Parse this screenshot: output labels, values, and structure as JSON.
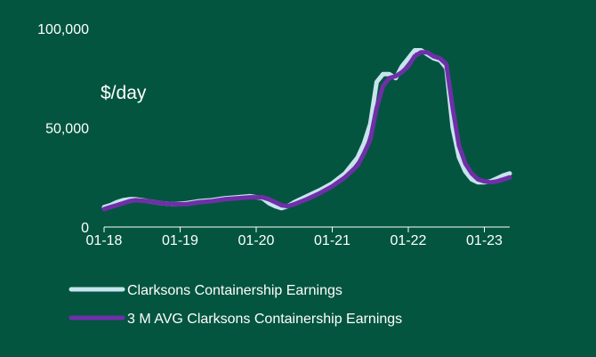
{
  "chart_data": {
    "type": "line",
    "title": "",
    "ylabel": "$/day",
    "xlabel": "",
    "ylim": [
      0,
      100000
    ],
    "y_ticks": [
      {
        "value": 0,
        "label": "0"
      },
      {
        "value": 50000,
        "label": "50,000"
      },
      {
        "value": 100000,
        "label": "100,000"
      }
    ],
    "x_ticks": [
      "01-18",
      "01-19",
      "01-20",
      "01-21",
      "01-22",
      "01-23"
    ],
    "x_start": "2018-01",
    "grid": false,
    "legend": "bottom-left",
    "series": [
      {
        "name": "Clarksons Containership Earnings",
        "color": "#c7e3ee",
        "x": [
          "2018-01",
          "2018-02",
          "2018-03",
          "2018-04",
          "2018-05",
          "2018-06",
          "2018-08",
          "2018-10",
          "2018-12",
          "2019-02",
          "2019-04",
          "2019-06",
          "2019-08",
          "2019-10",
          "2019-12",
          "2020-02",
          "2020-03",
          "2020-04",
          "2020-05",
          "2020-06",
          "2020-07",
          "2020-09",
          "2020-11",
          "2021-01",
          "2021-03",
          "2021-05",
          "2021-06",
          "2021-07",
          "2021-08",
          "2021-09",
          "2021-10",
          "2021-11",
          "2021-12",
          "2022-01",
          "2022-02",
          "2022-03",
          "2022-04",
          "2022-05",
          "2022-06",
          "2022-07",
          "2022-08",
          "2022-09",
          "2022-10",
          "2022-11",
          "2022-12",
          "2023-01",
          "2023-02",
          "2023-03",
          "2023-04",
          "2023-05"
        ],
        "values": [
          10000,
          11000,
          12500,
          13500,
          14000,
          14000,
          13000,
          12000,
          11500,
          12000,
          13000,
          13500,
          14500,
          15000,
          15500,
          14500,
          12000,
          10500,
          9500,
          10500,
          12500,
          15500,
          18500,
          22000,
          27000,
          35000,
          42000,
          52000,
          73000,
          77000,
          77000,
          75000,
          81000,
          85000,
          89000,
          89000,
          87000,
          85000,
          84000,
          80000,
          50000,
          35000,
          28000,
          24000,
          22500,
          22500,
          23000,
          24500,
          26000,
          27000
        ]
      },
      {
        "name": "3 M AVG Clarksons Containership Earnings",
        "color": "#6f2fa8",
        "x": [
          "2018-01",
          "2018-02",
          "2018-03",
          "2018-04",
          "2018-05",
          "2018-06",
          "2018-08",
          "2018-10",
          "2018-12",
          "2019-02",
          "2019-04",
          "2019-06",
          "2019-08",
          "2019-10",
          "2019-12",
          "2020-02",
          "2020-03",
          "2020-04",
          "2020-05",
          "2020-06",
          "2020-07",
          "2020-09",
          "2020-11",
          "2021-01",
          "2021-03",
          "2021-05",
          "2021-06",
          "2021-07",
          "2021-08",
          "2021-09",
          "2021-10",
          "2021-11",
          "2021-12",
          "2022-01",
          "2022-02",
          "2022-03",
          "2022-04",
          "2022-05",
          "2022-06",
          "2022-07",
          "2022-08",
          "2022-09",
          "2022-10",
          "2022-11",
          "2022-12",
          "2023-01",
          "2023-02",
          "2023-03",
          "2023-04",
          "2023-05"
        ],
        "values": [
          9000,
          10000,
          11000,
          12000,
          13000,
          13500,
          13000,
          12000,
          11500,
          11500,
          12500,
          13000,
          14000,
          14500,
          15000,
          15000,
          14000,
          12500,
          11000,
          10500,
          11500,
          14000,
          17000,
          20500,
          25000,
          31000,
          37000,
          44000,
          60000,
          71000,
          75000,
          76000,
          78000,
          81000,
          86000,
          88000,
          88000,
          86000,
          85000,
          82000,
          60000,
          41000,
          32000,
          27000,
          24000,
          23000,
          22500,
          23000,
          24000,
          25000
        ]
      }
    ]
  }
}
